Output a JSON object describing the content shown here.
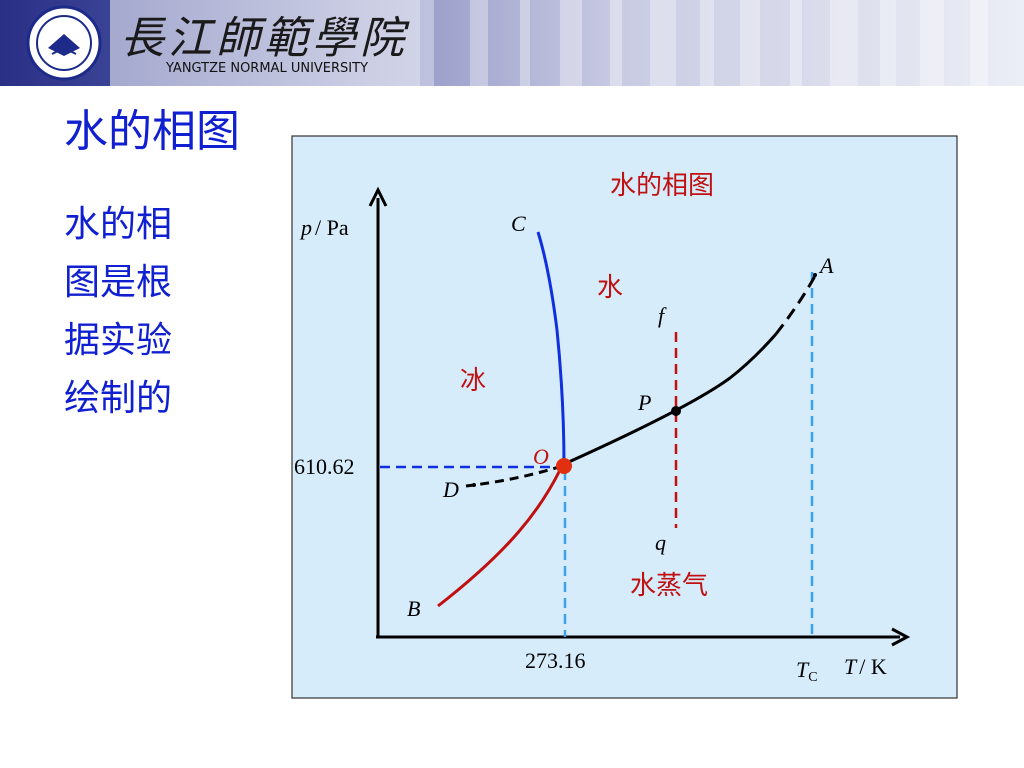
{
  "header": {
    "logo_cn": "長江師範學院",
    "logo_en": "YANGTZE NORMAL UNIVERSITY"
  },
  "slide": {
    "title": "水的相图",
    "side_text": [
      "水的相",
      "图是根",
      "据实验",
      "绘制的"
    ]
  },
  "diagram": {
    "title": "水的相图",
    "y_axis_label_var": "p",
    "y_axis_label_unit": "/ Pa",
    "x_axis_label_var": "T",
    "x_axis_label_unit": "/ K",
    "triple_point_pressure": "610.62",
    "triple_point_temp": "273.16",
    "critical_temp_var": "T",
    "critical_temp_sub": "C",
    "points": {
      "A": "A",
      "B": "B",
      "C": "C",
      "D": "D",
      "O": "O",
      "P": "P",
      "f": "f",
      "q": "q"
    },
    "regions": {
      "liquid": "水",
      "solid": "冰",
      "vapor": "水蒸气"
    },
    "colors": {
      "panel": "#d6ecfb",
      "fusion_curve": "#1030e0",
      "sublimation_curve": "#c01010",
      "vaporization_curve": "#000000",
      "guide_blue": "#3aa0f0",
      "guide_red": "#c01010",
      "triple_point": "#e03010"
    }
  }
}
